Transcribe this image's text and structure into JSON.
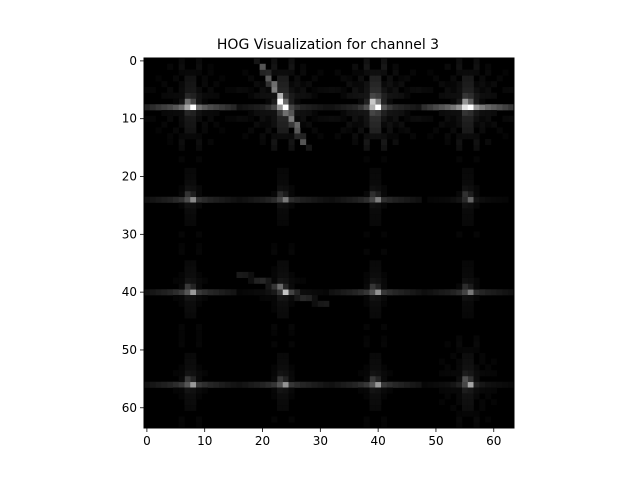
{
  "chart_data": {
    "type": "heatmap",
    "title": "HOG Visualization for channel 3",
    "xlabel": "",
    "ylabel": "",
    "xlim": [
      -0.5,
      63.5
    ],
    "ylim": [
      63.5,
      -0.5
    ],
    "grid": false,
    "colormap": "gray",
    "x_ticks": [
      "0",
      "10",
      "20",
      "30",
      "40",
      "50",
      "60"
    ],
    "y_ticks": [
      "0",
      "10",
      "20",
      "30",
      "40",
      "50",
      "60"
    ],
    "cell_size": 16,
    "cells": [
      {
        "row": 0,
        "col": 0,
        "intensity": 0.55,
        "dominant_angle_deg": 0
      },
      {
        "row": 0,
        "col": 1,
        "intensity": 0.85,
        "dominant_angle_deg": 120
      },
      {
        "row": 0,
        "col": 2,
        "intensity": 1.0,
        "dominant_angle_deg": 90
      },
      {
        "row": 0,
        "col": 3,
        "intensity": 0.75,
        "dominant_angle_deg": 0
      },
      {
        "row": 1,
        "col": 0,
        "intensity": 0.25,
        "dominant_angle_deg": 0
      },
      {
        "row": 1,
        "col": 1,
        "intensity": 0.22,
        "dominant_angle_deg": 0
      },
      {
        "row": 1,
        "col": 2,
        "intensity": 0.23,
        "dominant_angle_deg": 0
      },
      {
        "row": 1,
        "col": 3,
        "intensity": 0.24,
        "dominant_angle_deg": 150
      },
      {
        "row": 2,
        "col": 0,
        "intensity": 0.28,
        "dominant_angle_deg": 0
      },
      {
        "row": 2,
        "col": 1,
        "intensity": 0.3,
        "dominant_angle_deg": 160
      },
      {
        "row": 2,
        "col": 2,
        "intensity": 0.27,
        "dominant_angle_deg": 0
      },
      {
        "row": 2,
        "col": 3,
        "intensity": 0.22,
        "dominant_angle_deg": 0
      },
      {
        "row": 3,
        "col": 0,
        "intensity": 0.28,
        "dominant_angle_deg": 0
      },
      {
        "row": 3,
        "col": 1,
        "intensity": 0.27,
        "dominant_angle_deg": 0
      },
      {
        "row": 3,
        "col": 2,
        "intensity": 0.28,
        "dominant_angle_deg": 0
      },
      {
        "row": 3,
        "col": 3,
        "intensity": 0.4,
        "dominant_angle_deg": 170
      }
    ]
  }
}
